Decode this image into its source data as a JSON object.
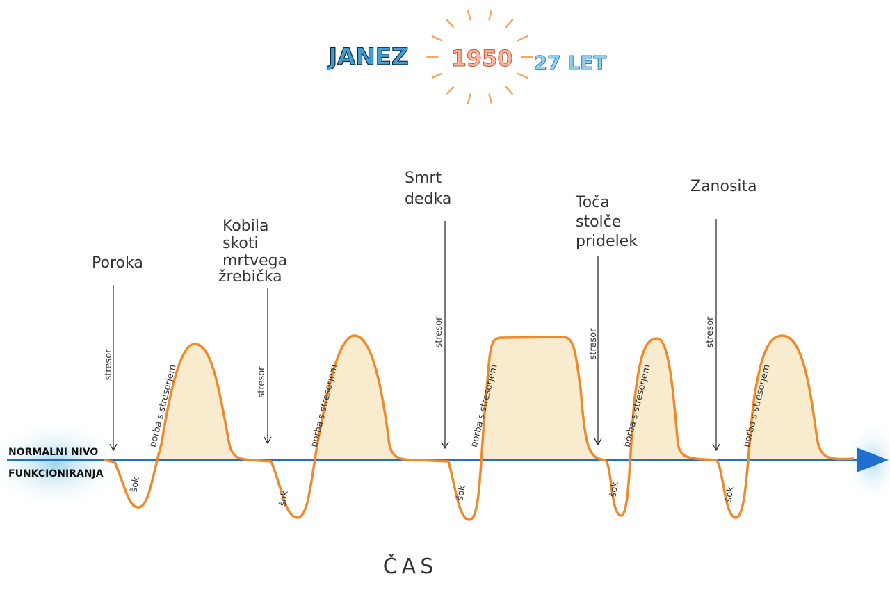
{
  "header": {
    "name": "JANEZ",
    "year": "1950",
    "age": "27 LET"
  },
  "axis": {
    "label_top": "NORMALNI NIVO",
    "label_bottom": "FUNKCIONIRANJA",
    "time_label": "ČAS"
  },
  "episodes": [
    {
      "event": [
        "Poroka"
      ],
      "stressor": "stresor",
      "struggle": "borba s stresorjem",
      "shock": "šok"
    },
    {
      "event": [
        "Kobila",
        "skoti",
        "mrtvega",
        "žrebička"
      ],
      "stressor": "stresor",
      "struggle": "borba s stresorjem",
      "shock": "šok"
    },
    {
      "event": [
        "Smrt",
        "dedka"
      ],
      "stressor": "stresor",
      "struggle": "borba s stresorjem",
      "shock": "šok"
    },
    {
      "event": [
        "Toča",
        "stolče",
        "pridelek"
      ],
      "stressor": "stresor",
      "struggle": "borba s stresorjem",
      "shock": "šok"
    },
    {
      "event": [
        "Zanosita"
      ],
      "stressor": "stresor",
      "struggle": "borba s stresorjem",
      "shock": "šok"
    }
  ]
}
